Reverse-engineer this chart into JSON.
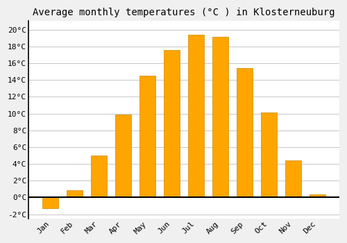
{
  "title": "Average monthly temperatures (°C ) in Klosterneuburg",
  "months": [
    "Jan",
    "Feb",
    "Mar",
    "Apr",
    "May",
    "Jun",
    "Jul",
    "Aug",
    "Sep",
    "Oct",
    "Nov",
    "Dec"
  ],
  "values": [
    -1.3,
    0.9,
    5.0,
    9.9,
    14.5,
    17.6,
    19.4,
    19.1,
    15.4,
    10.1,
    4.4,
    0.4
  ],
  "bar_color_top": "#FFB700",
  "bar_color_bottom": "#FFA500",
  "bar_edge_color": "#CC8800",
  "background_color": "#f0f0f0",
  "plot_bg_color": "#ffffff",
  "grid_color": "#cccccc",
  "ylim": [
    -2.5,
    21
  ],
  "yticks": [
    -2,
    0,
    2,
    4,
    6,
    8,
    10,
    12,
    14,
    16,
    18,
    20
  ],
  "title_fontsize": 10,
  "tick_fontsize": 8,
  "figsize": [
    5.0,
    3.5
  ],
  "dpi": 100,
  "bar_width": 0.65
}
